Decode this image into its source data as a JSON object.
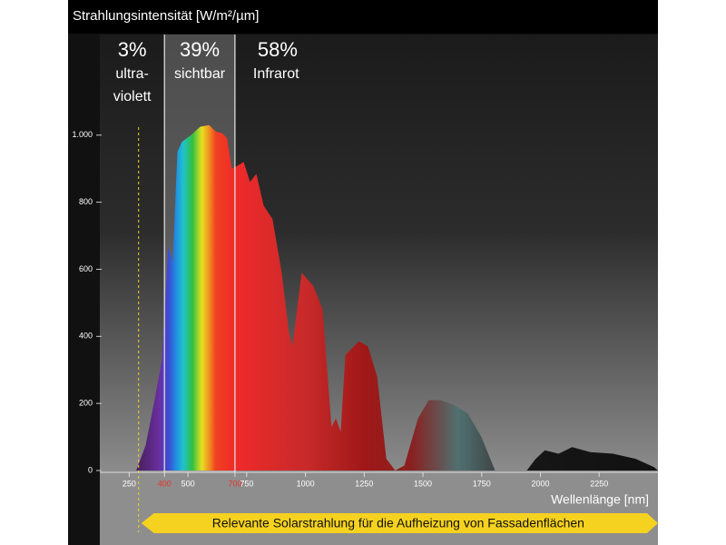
{
  "chart_data": {
    "type": "area",
    "title": "Strahlungsintensität [W/m²/µm]",
    "x_label": "Wellenlänge [nm]",
    "xlim": [
      125,
      2500
    ],
    "ylim": [
      0,
      1300
    ],
    "xticks": [
      250,
      400,
      500,
      700,
      750,
      1000,
      1250,
      1500,
      1750,
      2000,
      2250
    ],
    "xtick_colors": [
      "#ffffff",
      "#e8352b",
      "#ffffff",
      "#e8352b",
      "#ffffff",
      "#ffffff",
      "#ffffff",
      "#ffffff",
      "#ffffff",
      "#ffffff",
      "#ffffff"
    ],
    "yticks": [
      0,
      200,
      400,
      600,
      800,
      {
        "value": 1000,
        "label": "1.000"
      }
    ],
    "series": [
      {
        "x": [
          280,
          320,
          358,
          389,
          416,
          435,
          455,
          474,
          513,
          552,
          590,
          620,
          648,
          667,
          686,
          714,
          737,
          764,
          791,
          822,
          860,
          899,
          930,
          945,
          984,
          1034,
          1073,
          1111,
          1130,
          1150,
          1170,
          1228,
          1266,
          1305,
          1344,
          1382,
          1421,
          1479,
          1525,
          1575,
          1633,
          1691,
          1749,
          1807,
          1942,
          1980,
          2019,
          2077,
          2135,
          2212,
          2309,
          2405,
          2483,
          2500
        ],
        "values": [
          0,
          75,
          210,
          330,
          670,
          620,
          950,
          980,
          1000,
          1025,
          1030,
          1010,
          1005,
          990,
          900,
          910,
          920,
          860,
          885,
          790,
          750,
          590,
          410,
          370,
          590,
          550,
          480,
          130,
          155,
          115,
          345,
          385,
          370,
          280,
          35,
          0,
          15,
          155,
          210,
          210,
          195,
          170,
          100,
          0,
          0,
          35,
          60,
          50,
          70,
          55,
          50,
          35,
          10,
          0
        ]
      }
    ],
    "regions": {
      "edges": [
        400,
        700
      ],
      "values": [
        3,
        39,
        58
      ],
      "value_labels": [
        "3%",
        "39%",
        "58%"
      ],
      "labels": [
        [
          "ultra-",
          "violett"
        ],
        [
          "sichtbar"
        ],
        [
          "Infrarot"
        ]
      ]
    },
    "annotation": {
      "x": 290,
      "text": "Relevante Solarstrahlung für die Aufheizung von Fassadenflächen",
      "color": "#f5d21f"
    }
  }
}
